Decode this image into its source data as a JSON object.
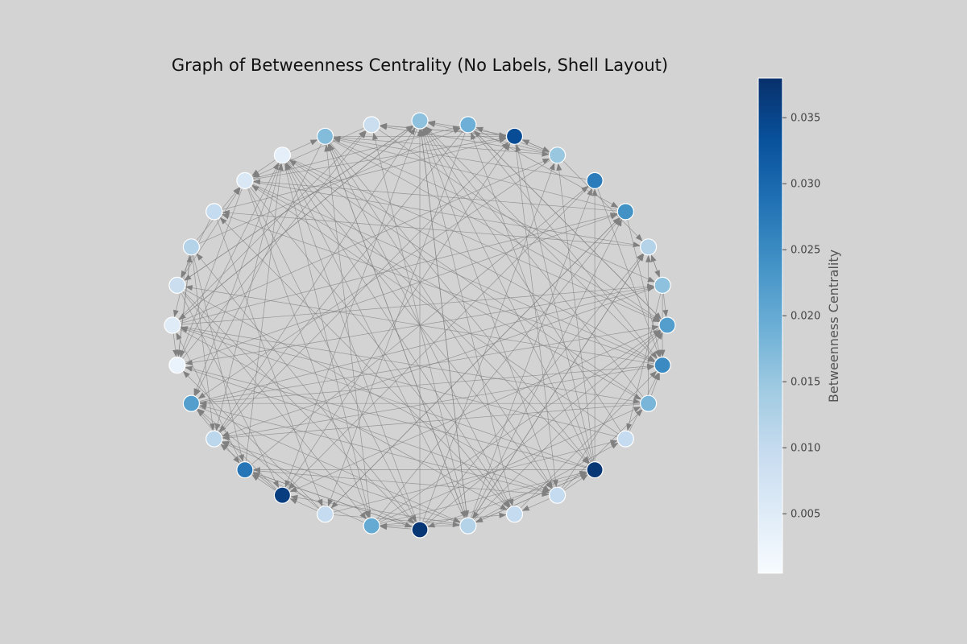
{
  "title": "Graph of Betweenness Centrality (No Labels, Shell Layout)",
  "colorbar": {
    "label": "Betweenness Centrality",
    "min": 0.0005,
    "max": 0.038,
    "ticks": [
      {
        "value": 0.005,
        "label": "0.005"
      },
      {
        "value": 0.01,
        "label": "0.010"
      },
      {
        "value": 0.015,
        "label": "0.015"
      },
      {
        "value": 0.02,
        "label": "0.020"
      },
      {
        "value": 0.025,
        "label": "0.025"
      },
      {
        "value": 0.03,
        "label": "0.030"
      },
      {
        "value": 0.035,
        "label": "0.035"
      }
    ]
  },
  "graph": {
    "layout": "shell",
    "directed": true,
    "node_count": 32,
    "edge_color": "#808080",
    "node_edge_color": "#ffffff",
    "nodes": [
      {
        "id": 0,
        "centrality": 0.022
      },
      {
        "id": 1,
        "centrality": 0.016
      },
      {
        "id": 2,
        "centrality": 0.012
      },
      {
        "id": 3,
        "centrality": 0.024
      },
      {
        "id": 4,
        "centrality": 0.027
      },
      {
        "id": 5,
        "centrality": 0.015
      },
      {
        "id": 6,
        "centrality": 0.034
      },
      {
        "id": 7,
        "centrality": 0.019
      },
      {
        "id": 8,
        "centrality": 0.016
      },
      {
        "id": 9,
        "centrality": 0.009
      },
      {
        "id": 10,
        "centrality": 0.017
      },
      {
        "id": 11,
        "centrality": 0.004
      },
      {
        "id": 12,
        "centrality": 0.006
      },
      {
        "id": 13,
        "centrality": 0.01
      },
      {
        "id": 14,
        "centrality": 0.012
      },
      {
        "id": 15,
        "centrality": 0.009
      },
      {
        "id": 16,
        "centrality": 0.005
      },
      {
        "id": 17,
        "centrality": 0.003
      },
      {
        "id": 18,
        "centrality": 0.022
      },
      {
        "id": 19,
        "centrality": 0.011
      },
      {
        "id": 20,
        "centrality": 0.028
      },
      {
        "id": 21,
        "centrality": 0.036
      },
      {
        "id": 22,
        "centrality": 0.01
      },
      {
        "id": 23,
        "centrality": 0.02
      },
      {
        "id": 24,
        "centrality": 0.037
      },
      {
        "id": 25,
        "centrality": 0.012
      },
      {
        "id": 26,
        "centrality": 0.01
      },
      {
        "id": 27,
        "centrality": 0.01
      },
      {
        "id": 28,
        "centrality": 0.037
      },
      {
        "id": 29,
        "centrality": 0.01
      },
      {
        "id": 30,
        "centrality": 0.018
      },
      {
        "id": 31,
        "centrality": 0.025
      }
    ]
  }
}
